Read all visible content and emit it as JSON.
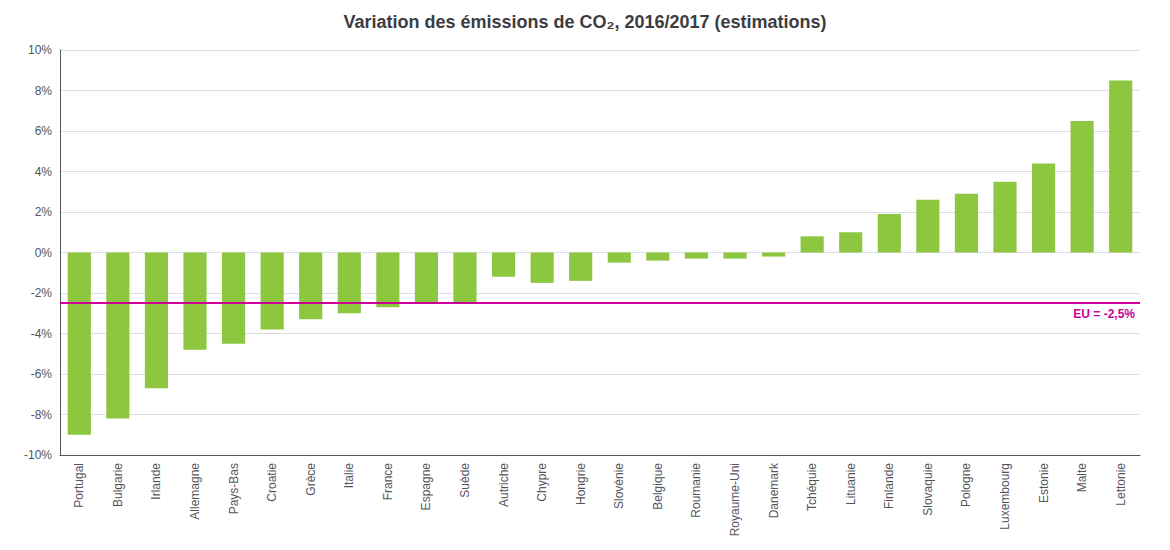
{
  "chart_data": {
    "type": "bar",
    "title": "Variation des émissions de CO₂, 2016/2017 (estimations)",
    "categories": [
      "Portugal",
      "Bulgarie",
      "Irlande",
      "Allemagne",
      "Pays-Bas",
      "Croatie",
      "Grèce",
      "Italie",
      "France",
      "Espagne",
      "Suède",
      "Autriche",
      "Chypre",
      "Hongrie",
      "Slovénie",
      "Belgique",
      "Roumanie",
      "Royaume-Uni",
      "Danemark",
      "Tchéquie",
      "Lituanie",
      "Finlande",
      "Slovaquie",
      "Pologne",
      "Luxembourg",
      "Estonie",
      "Malte",
      "Lettonie"
    ],
    "values": [
      -9.0,
      -8.2,
      -6.7,
      -4.8,
      -4.5,
      -3.8,
      -3.3,
      -3.0,
      -2.7,
      -2.5,
      -2.5,
      -1.2,
      -1.5,
      -1.4,
      -0.5,
      -0.4,
      -0.3,
      -0.3,
      -0.2,
      0.8,
      1.0,
      1.9,
      2.6,
      2.9,
      3.5,
      4.4,
      6.5,
      8.5
    ],
    "color": "#8dc63f",
    "ylim": [
      -10,
      10
    ],
    "yticks": [
      {
        "value": -10,
        "label": "-10%"
      },
      {
        "value": -8,
        "label": "-8%"
      },
      {
        "value": -6,
        "label": "-6%"
      },
      {
        "value": -4,
        "label": "-4%"
      },
      {
        "value": -2,
        "label": "-2%"
      },
      {
        "value": 0,
        "label": "0%"
      },
      {
        "value": 2,
        "label": "2%"
      },
      {
        "value": 4,
        "label": "4%"
      },
      {
        "value": 6,
        "label": "6%"
      },
      {
        "value": 8,
        "label": "8%"
      },
      {
        "value": 10,
        "label": "10%"
      }
    ],
    "grid": true,
    "annotations": [
      {
        "text": "EU = -2,5%",
        "y": -2.5,
        "color": "#cc0099"
      }
    ]
  }
}
